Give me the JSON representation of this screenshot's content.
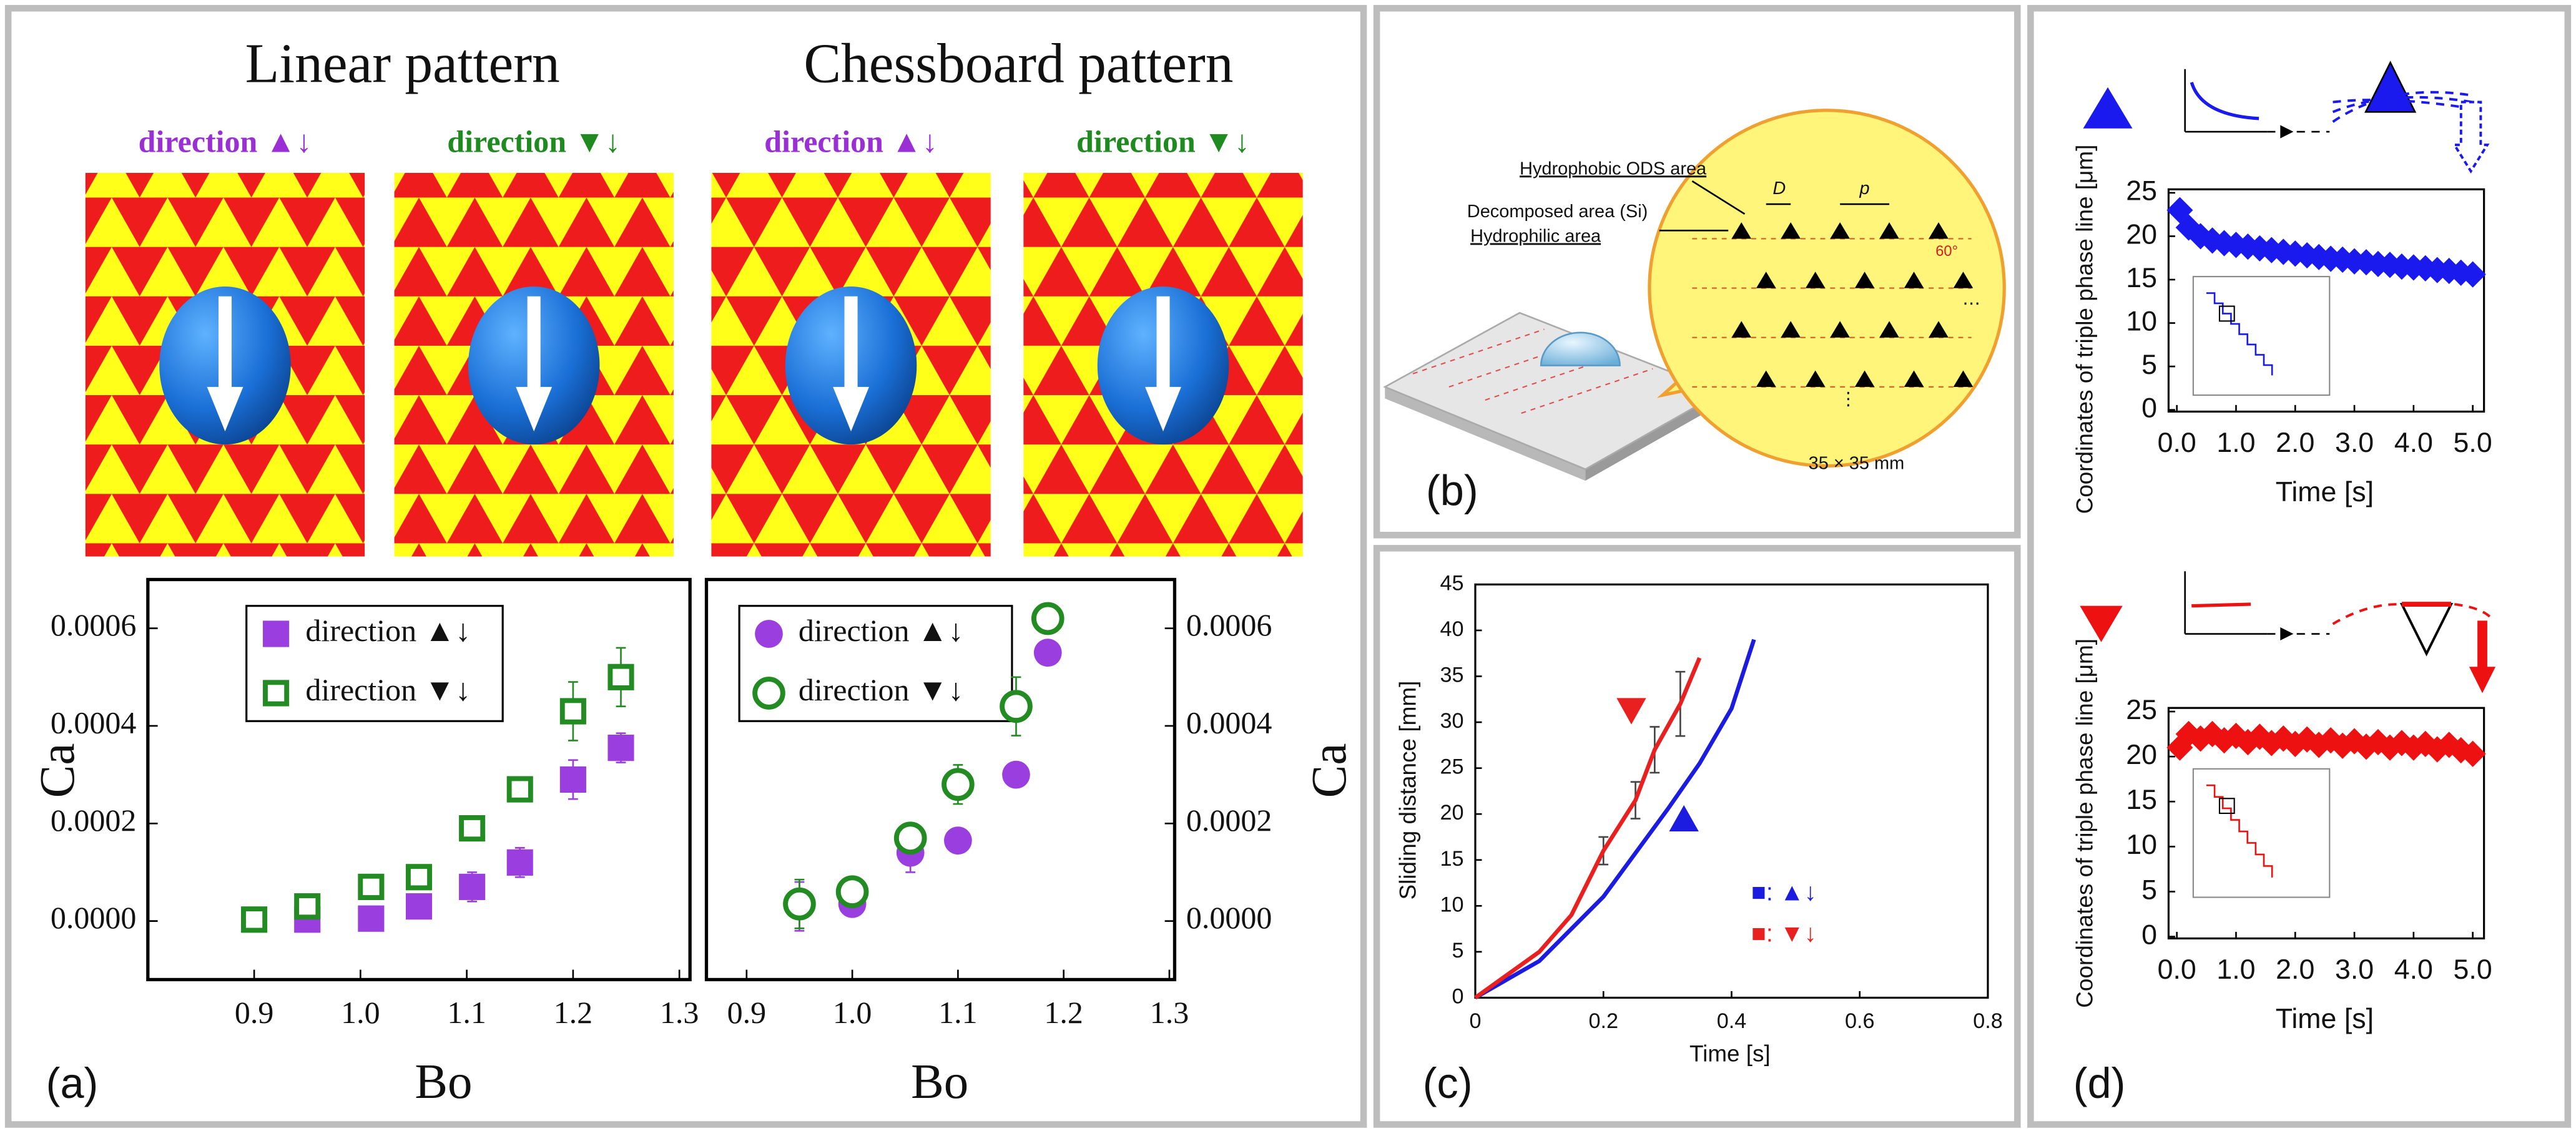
{
  "panel_labels": [
    "(a)",
    "(b)",
    "(c)",
    "(d)"
  ],
  "pattern_images": [
    {
      "caption": "direction ▲↓",
      "color": "#9a2fd6"
    },
    {
      "caption": "direction ▼↓",
      "color": "#1f8a1f"
    },
    {
      "caption": "direction ▲↓",
      "color": "#9a2fd6"
    },
    {
      "caption": "direction ▼↓",
      "color": "#1f8a1f"
    }
  ],
  "diagram": {
    "labels": [
      "Hydrophobic ODS area",
      "Decomposed area (Si)",
      "Hydrophilic area",
      "D",
      "p",
      "60°",
      "⋯",
      "⋮",
      "35 × 35 mm"
    ]
  },
  "chart_data": [
    {
      "type": "scatter",
      "title": "Linear pattern",
      "xlabel": "Bo",
      "ylabel": "Ca",
      "xlim": [
        0.8,
        1.31
      ],
      "xticks": [
        0.9,
        {
          "value": 1,
          "label": "1.0"
        },
        1.1,
        1.2,
        1.3
      ],
      "ylim": [
        -0.00012,
        0.0007
      ],
      "yticks": [
        {
          "value": 0,
          "label": "0.0000"
        },
        0.0002,
        0.0004,
        0.0006
      ],
      "series": [
        {
          "name": "direction ▲↓",
          "color": "#9a3ee0",
          "marker": "square",
          "filled": true,
          "x": [
            0.95,
            1.01,
            1.055,
            1.105,
            1.15,
            1.2,
            1.245
          ],
          "values": [
            3e-06,
            5e-06,
            3e-05,
            7e-05,
            0.00012,
            0.00029,
            0.000355
          ],
          "errors": [
            null,
            null,
            null,
            3e-05,
            3e-05,
            4e-05,
            3e-05
          ]
        },
        {
          "name": "direction ▼↓",
          "color": "#228b22",
          "marker": "square",
          "filled": false,
          "x": [
            0.9,
            0.95,
            1.01,
            1.055,
            1.105,
            1.15,
            1.2,
            1.245
          ],
          "values": [
            3e-06,
            3e-05,
            7e-05,
            9e-05,
            0.00019,
            0.00027,
            0.00043,
            0.0005
          ],
          "errors": [
            null,
            null,
            null,
            2e-05,
            2e-05,
            2e-05,
            6e-05,
            6e-05
          ]
        }
      ]
    },
    {
      "type": "scatter",
      "title": "Chessboard pattern",
      "xlabel": "Bo",
      "ylabel": "Ca",
      "xlim": [
        0.862,
        1.305
      ],
      "xticks": [
        0.9,
        {
          "value": 1,
          "label": "1.0"
        },
        1.1,
        1.2,
        1.3
      ],
      "ylim": [
        -0.00012,
        0.0007
      ],
      "yticks": [
        {
          "value": 0,
          "label": "0.0000"
        },
        0.0002,
        0.0004,
        0.0006
      ],
      "series": [
        {
          "name": "direction ▲↓",
          "color": "#9a3ee0",
          "marker": "circle",
          "filled": true,
          "x": [
            0.95,
            1.0,
            1.055,
            1.1,
            1.155,
            1.185
          ],
          "values": [
            3e-05,
            3.5e-05,
            0.00014,
            0.000165,
            0.0003,
            0.00055
          ],
          "errors": [
            5e-05,
            null,
            4e-05,
            null,
            null,
            null
          ]
        },
        {
          "name": "direction ▼↓",
          "color": "#228b22",
          "marker": "circle",
          "filled": false,
          "x": [
            0.95,
            1.0,
            1.055,
            1.1,
            1.155,
            1.185
          ],
          "values": [
            3.5e-05,
            6e-05,
            0.00017,
            0.00028,
            0.00044,
            0.00062
          ],
          "errors": [
            5e-05,
            2e-05,
            3e-05,
            4e-05,
            6e-05,
            null
          ]
        }
      ]
    },
    {
      "type": "line",
      "xlabel": "Time [s]",
      "ylabel": "Sliding distance [mm]",
      "xlim": [
        0,
        0.8
      ],
      "xticks": [
        0,
        0.2,
        0.4,
        0.6,
        0.8
      ],
      "ylim": [
        0,
        45
      ],
      "yticks": [
        0,
        5,
        10,
        15,
        20,
        25,
        30,
        35,
        40,
        45
      ],
      "series": [
        {
          "name": "■: ▲↓",
          "color": "#1c1ce0",
          "x": [
            0,
            0.1,
            0.2,
            0.3,
            0.35,
            0.4,
            0.435
          ],
          "values": [
            0,
            4,
            11,
            20.5,
            25.5,
            31.5,
            39
          ]
        },
        {
          "name": "■: ▼↓",
          "color": "#e82020",
          "x": [
            0,
            0.1,
            0.15,
            0.2,
            0.25,
            0.28,
            0.32,
            0.35
          ],
          "values": [
            0,
            5,
            9,
            16,
            21.5,
            27,
            32,
            37
          ],
          "errors": [
            null,
            null,
            null,
            1.5,
            2,
            2.5,
            3.5,
            null
          ]
        }
      ]
    },
    {
      "type": "scatter",
      "xlabel": "Time [s]",
      "ylabel": "Coordinates of triple phase line [μm]",
      "xlim": [
        -0.14,
        5.19
      ],
      "xticks": [
        {
          "value": 0,
          "label": "0.0"
        },
        {
          "value": 1,
          "label": "1.0"
        },
        {
          "value": 2,
          "label": "2.0"
        },
        {
          "value": 3,
          "label": "3.0"
        },
        {
          "value": 4,
          "label": "4.0"
        },
        {
          "value": 5,
          "label": "5.0"
        }
      ],
      "ylim": [
        -0.2,
        25.4
      ],
      "yticks": [
        0,
        5,
        10,
        15,
        20,
        25
      ],
      "series": [
        {
          "color": "#1a1aee",
          "marker": "diamond",
          "filled": true,
          "x": [
            0.05,
            0.2,
            0.4,
            0.6,
            0.8,
            1,
            1.2,
            1.4,
            1.6,
            1.8,
            2,
            2.2,
            2.4,
            2.6,
            2.8,
            3,
            3.2,
            3.4,
            3.6,
            3.8,
            4,
            4.2,
            4.4,
            4.6,
            4.8,
            5
          ],
          "values": [
            23,
            21,
            20,
            19.5,
            19.2,
            19,
            18.8,
            18.6,
            18.4,
            18.2,
            18,
            17.8,
            17.6,
            17.4,
            17.3,
            17.1,
            17,
            16.8,
            16.7,
            16.5,
            16.4,
            16.3,
            16.1,
            16,
            15.8,
            15.6
          ]
        }
      ]
    },
    {
      "type": "scatter",
      "xlabel": "Time [s]",
      "ylabel": "Coordinates of triple phase line [μm]",
      "xlim": [
        -0.14,
        5.19
      ],
      "xticks": [
        {
          "value": 0,
          "label": "0.0"
        },
        {
          "value": 1,
          "label": "1.0"
        },
        {
          "value": 2,
          "label": "2.0"
        },
        {
          "value": 3,
          "label": "3.0"
        },
        {
          "value": 4,
          "label": "4.0"
        },
        {
          "value": 5,
          "label": "5.0"
        }
      ],
      "ylim": [
        -0.2,
        25.4
      ],
      "yticks": [
        0,
        5,
        10,
        15,
        20,
        25
      ],
      "series": [
        {
          "color": "#ee1111",
          "marker": "diamond",
          "filled": true,
          "x": [
            0.05,
            0.2,
            0.4,
            0.6,
            0.8,
            1,
            1.2,
            1.4,
            1.6,
            1.8,
            2,
            2.2,
            2.4,
            2.6,
            2.8,
            3,
            3.2,
            3.4,
            3.6,
            3.8,
            4,
            4.2,
            4.4,
            4.6,
            4.8,
            5
          ],
          "values": [
            21,
            22.5,
            22,
            22.5,
            21.8,
            22.3,
            21.6,
            22.2,
            21.5,
            22,
            21.4,
            21.9,
            21.3,
            21.8,
            21.2,
            21.7,
            21.1,
            21.6,
            21,
            21.5,
            21,
            21.4,
            20.8,
            21.3,
            20.7,
            20.3
          ]
        }
      ]
    }
  ]
}
